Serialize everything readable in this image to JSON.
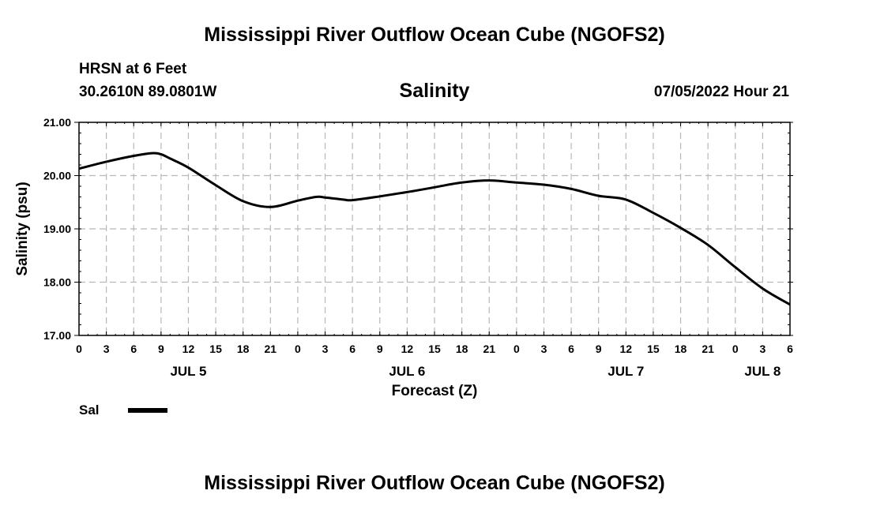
{
  "page_title_top": "Mississippi River Outflow Ocean Cube (NGOFS2)",
  "page_title_bottom": "Mississippi River Outflow Ocean Cube (NGOFS2)",
  "station": {
    "name": "HRSN at 6 Feet",
    "coords": "30.2610N  89.0801W",
    "datetime": "07/05/2022 Hour 21"
  },
  "legend": {
    "label": "Sal"
  },
  "colors": {
    "line": "#000000",
    "grid": "#b8b8b8"
  },
  "chart_data": {
    "type": "line",
    "title": "Salinity",
    "xlabel": "Forecast (Z)",
    "ylabel": "Salinity (psu)",
    "xlim": [
      0,
      78
    ],
    "ylim": [
      17,
      21
    ],
    "x_unit": "hours from 00Z Jul 5",
    "y_ticks": [
      "17.00",
      "18.00",
      "19.00",
      "20.00",
      "21.00"
    ],
    "x_tick_labels": [
      "0",
      "3",
      "6",
      "9",
      "12",
      "15",
      "18",
      "21",
      "0",
      "3",
      "6",
      "9",
      "12",
      "15",
      "18",
      "21",
      "0",
      "3",
      "6",
      "9",
      "12",
      "15",
      "18",
      "21",
      "0",
      "3",
      "6"
    ],
    "day_labels": [
      {
        "label": "JUL 5",
        "hour": 12
      },
      {
        "label": "JUL 6",
        "hour": 36
      },
      {
        "label": "JUL 7",
        "hour": 60
      },
      {
        "label": "JUL 8",
        "hour": 75
      }
    ],
    "grid": true,
    "series": [
      {
        "name": "Sal",
        "x": [
          0,
          3,
          6,
          8,
          9,
          10,
          12,
          15,
          18,
          21,
          24,
          26,
          27,
          29,
          30,
          33,
          36,
          39,
          42,
          45,
          48,
          51,
          54,
          57,
          60,
          63,
          66,
          69,
          72,
          75,
          78
        ],
        "y": [
          20.13,
          20.26,
          20.37,
          20.42,
          20.4,
          20.32,
          20.15,
          19.82,
          19.52,
          19.41,
          19.53,
          19.6,
          19.59,
          19.55,
          19.54,
          19.61,
          19.69,
          19.78,
          19.87,
          19.91,
          19.87,
          19.83,
          19.75,
          19.62,
          19.55,
          19.3,
          19.02,
          18.7,
          18.28,
          17.88,
          17.58
        ]
      }
    ]
  }
}
